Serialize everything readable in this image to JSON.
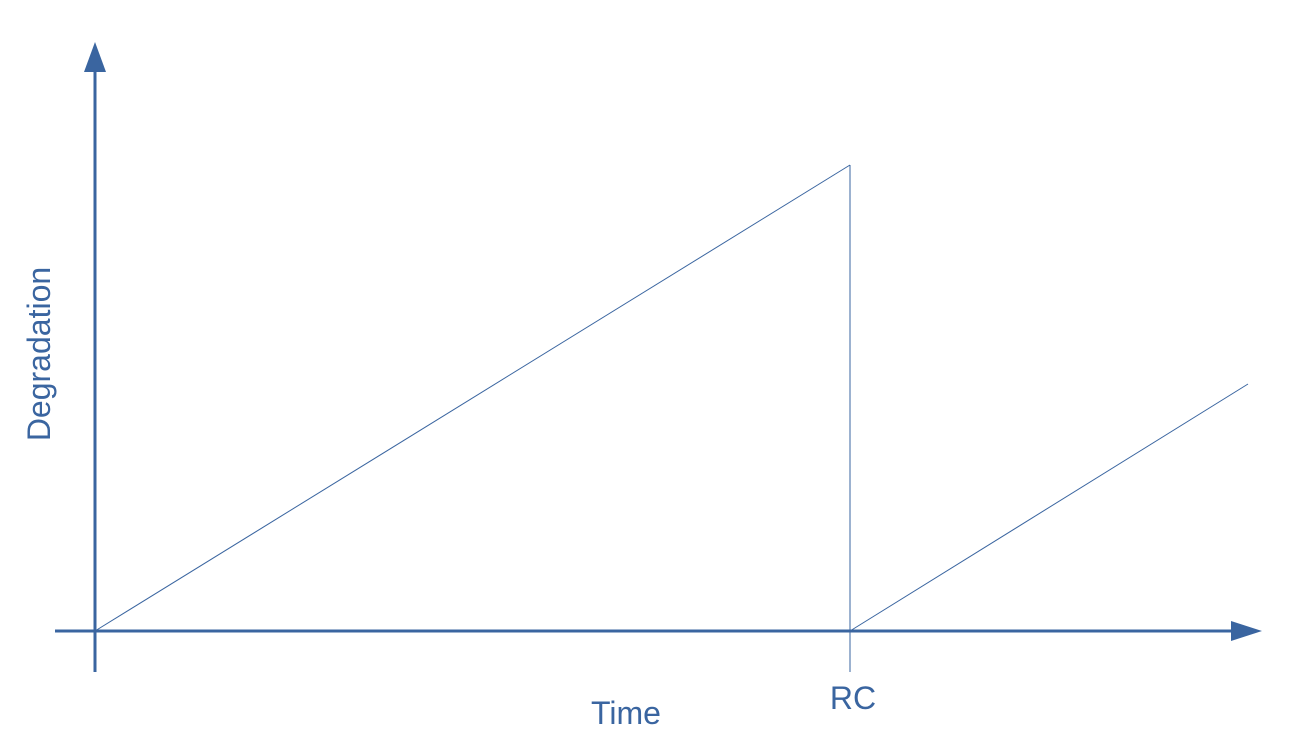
{
  "diagram": {
    "x_axis_label": "Time",
    "y_axis_label": "Degradation",
    "marker_label": "RC",
    "color": "#3a65a0"
  }
}
